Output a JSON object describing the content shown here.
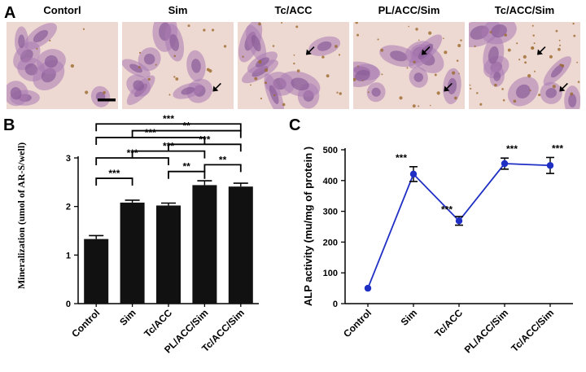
{
  "panels": {
    "A": "A",
    "B": "B",
    "C": "C"
  },
  "micrographs": {
    "titles": [
      "Contorl",
      "Sim",
      "Tc/ACC",
      "PL/ACC/Sim",
      "Tc/ACC/Sim"
    ],
    "arrows": [
      0,
      1,
      1,
      2,
      2
    ],
    "colors": {
      "background": "#eed8d2",
      "cell": "#a97ab2",
      "nucleus": "#8a5d98",
      "deposit": "#9a6a2a"
    }
  },
  "chart_data": [
    {
      "type": "bar",
      "categories": [
        "Control",
        "Sim",
        "Tc/ACC",
        "PL/ACC/Sim",
        "Tc/ACC/Sim"
      ],
      "values": [
        1.33,
        2.08,
        2.02,
        2.44,
        2.41
      ],
      "errors": [
        0.07,
        0.05,
        0.05,
        0.09,
        0.07
      ],
      "ylabel": "Mineralization (umol of AR-S/well)",
      "ylim": [
        0,
        3
      ],
      "yticks": [
        "0",
        "1",
        "2",
        "3"
      ],
      "bar_color": "#111111",
      "significance": [
        {
          "from": 0,
          "to": 1,
          "label": "***"
        },
        {
          "from": 0,
          "to": 2,
          "label": "***"
        },
        {
          "from": 0,
          "to": 3,
          "label": "***"
        },
        {
          "from": 0,
          "to": 4,
          "label": "***"
        },
        {
          "from": 1,
          "to": 3,
          "label": "***"
        },
        {
          "from": 1,
          "to": 4,
          "label": "**"
        },
        {
          "from": 2,
          "to": 3,
          "label": "**"
        },
        {
          "from": 2,
          "to": 4,
          "label": "***"
        },
        {
          "from": 3,
          "to": 4,
          "label": "**"
        }
      ]
    },
    {
      "type": "line",
      "categories": [
        "Control",
        "Sim",
        "Tc/ACC",
        "PL/ACC/Sim",
        "Tc/ACC/Sim"
      ],
      "values": [
        50,
        421,
        269,
        455,
        449
      ],
      "errors": [
        0,
        24,
        14,
        18,
        26
      ],
      "labels": [
        "",
        "***",
        "***",
        "***",
        "***"
      ],
      "ylabel": "ALP activity (mu/mg of protein )",
      "ylim": [
        0,
        500
      ],
      "yticks": [
        "0",
        "100",
        "200",
        "300",
        "400",
        "500"
      ],
      "line_color": "#1f2fc4",
      "marker_color": "#1f2fc4"
    }
  ]
}
